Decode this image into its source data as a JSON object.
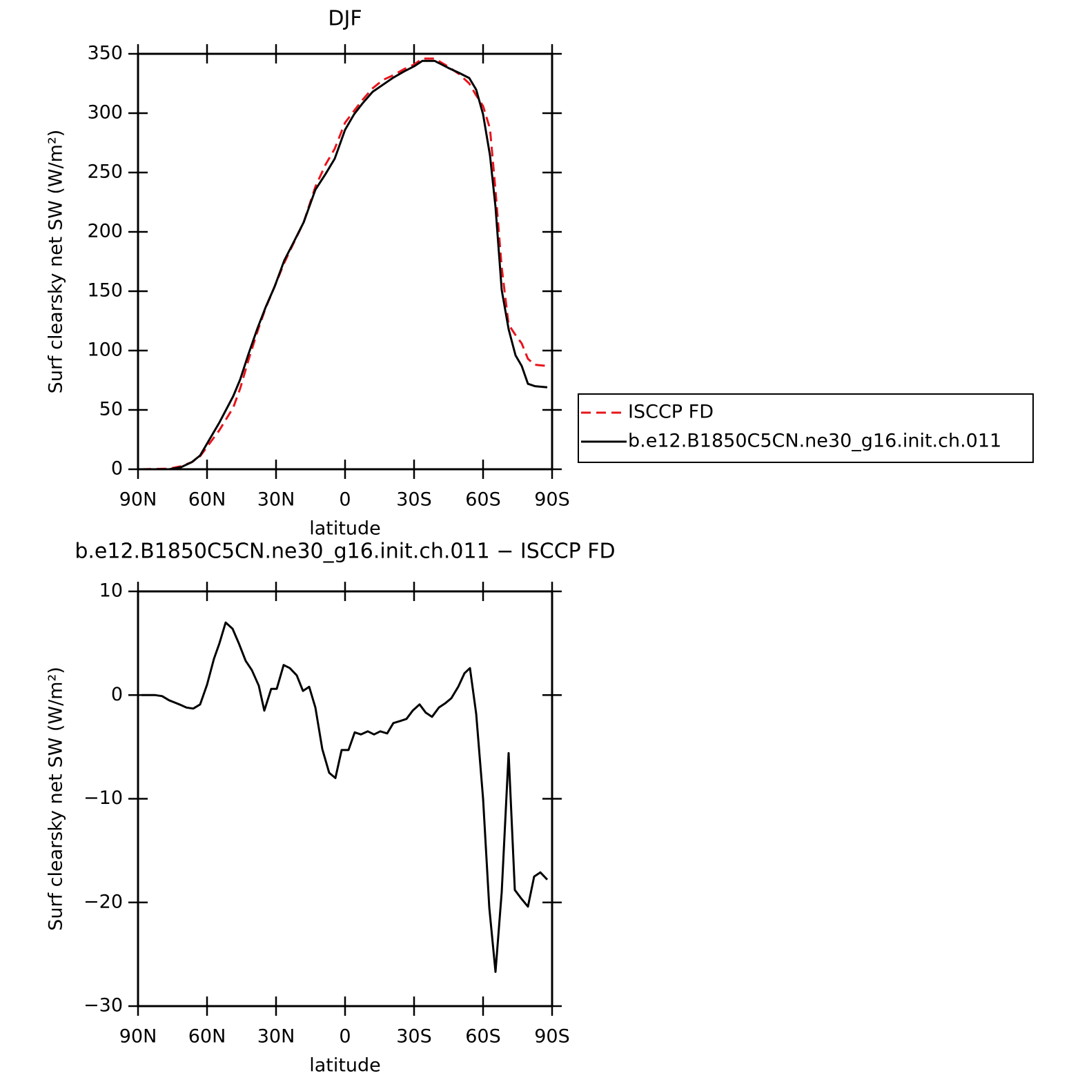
{
  "chart_data": [
    {
      "type": "line",
      "title": "DJF",
      "xlabel": "latitude",
      "ylabel": "Surf clearsky net SW (W/m²)",
      "x": [
        88.5,
        76.5,
        71.4,
        66.6,
        63,
        54.6,
        48.6,
        45.6,
        42,
        38.1,
        34.5,
        30.6,
        26.4,
        22.5,
        18,
        12.9,
        8.4,
        4.5,
        0,
        -3.9,
        -7.5,
        -12,
        -16.5,
        -21,
        -25.5,
        -30,
        -33.6,
        -39,
        -45,
        -49.5,
        -54,
        -57,
        -60,
        -63,
        -65.4,
        -68.1,
        -71.1,
        -74.1,
        -76.8,
        -79.5,
        -82.5,
        -87.9
      ],
      "series": [
        {
          "name": "ISCCP FD",
          "color": "#e8141c",
          "dashed": true,
          "values": [
            0,
            0.5,
            2.5,
            6,
            11,
            33,
            52,
            68,
            92,
            116,
            136,
            154,
            174,
            190,
            208,
            238,
            257,
            270,
            292,
            302,
            311,
            321,
            328,
            332,
            337,
            341,
            346,
            346,
            339,
            333,
            325,
            315,
            306,
            287,
            235,
            170,
            122,
            113,
            106,
            93,
            88,
            87
          ]
        },
        {
          "name": "b.e12.B1850C5CN.ne30_g16.init.ch.011",
          "color": "#000000",
          "dashed": false,
          "values": [
            0,
            0,
            1.7,
            6,
            11.6,
            39.5,
            61.6,
            75.6,
            97,
            118.6,
            136.6,
            154,
            176,
            190.7,
            208,
            235.5,
            249,
            261.6,
            286,
            299,
            308,
            318,
            324,
            330,
            335,
            339.5,
            344,
            344,
            338,
            334,
            329.6,
            319.8,
            299,
            264.5,
            221,
            151,
            118,
            96,
            87,
            72,
            70,
            69
          ]
        }
      ],
      "xlim": [
        90,
        -90
      ],
      "xticks": [
        {
          "value": 90,
          "label": "90N"
        },
        {
          "value": 60,
          "label": "60N"
        },
        {
          "value": 30,
          "label": "30N"
        },
        0,
        {
          "value": -30,
          "label": "30S"
        },
        {
          "value": -60,
          "label": "60S"
        },
        {
          "value": -90,
          "label": "90S"
        }
      ],
      "ylim": [
        0,
        350
      ],
      "yticks": [
        0,
        50,
        100,
        150,
        200,
        250,
        300,
        350
      ],
      "legend": "right"
    },
    {
      "type": "line",
      "title": "b.e12.B1850C5CN.ne30_g16.init.ch.011 − ISCCP FD",
      "xlabel": "latitude",
      "ylabel": "Surf clearsky net SW (W/m²)",
      "x": [
        88.5,
        82.5,
        79.5,
        76.5,
        72,
        69,
        66,
        63,
        60,
        57,
        54.6,
        51.9,
        48.9,
        46.2,
        43.2,
        40.5,
        37.5,
        35.1,
        32.1,
        29.7,
        26.7,
        24,
        21,
        18.3,
        15.6,
        12.9,
        9.9,
        6.9,
        4.2,
        1.5,
        -1.5,
        -4.2,
        -6.9,
        -9.9,
        -12.6,
        -15.3,
        -18.3,
        -21,
        -24,
        -26.7,
        -29.4,
        -32.4,
        -35.1,
        -37.8,
        -40.8,
        -43.5,
        -46.2,
        -49.2,
        -51.9,
        -54.3,
        -57,
        -60,
        -62.7,
        -65.4,
        -68.1,
        -71.1,
        -73.8,
        -76.5,
        -79.5,
        -82.2,
        -84.9,
        -87.9
      ],
      "series": [
        {
          "color": "#000000",
          "dashed": false,
          "values": [
            0,
            0,
            -0.1,
            -0.5,
            -0.9,
            -1.2,
            -1.3,
            -0.9,
            1,
            3.5,
            5,
            7,
            6.4,
            5,
            3.3,
            2.4,
            0.9,
            -1.5,
            0.6,
            0.6,
            2.9,
            2.6,
            1.9,
            0.4,
            0.8,
            -1.2,
            -5.2,
            -7.5,
            -8,
            -5.3,
            -5.3,
            -3.6,
            -3.8,
            -3.5,
            -3.8,
            -3.5,
            -3.7,
            -2.7,
            -2.5,
            -2.3,
            -1.5,
            -0.9,
            -1.7,
            -2.1,
            -1.2,
            -0.8,
            -0.3,
            0.8,
            2.1,
            2.6,
            -1.8,
            -10,
            -20.5,
            -26.7,
            -19,
            -5.6,
            -18.8,
            -19.6,
            -20.4,
            -17.5,
            -17.1,
            -17.8
          ]
        }
      ],
      "xlim": [
        90,
        -90
      ],
      "xticks": [
        {
          "value": 90,
          "label": "90N"
        },
        {
          "value": 60,
          "label": "60N"
        },
        {
          "value": 30,
          "label": "30N"
        },
        0,
        {
          "value": -30,
          "label": "30S"
        },
        {
          "value": -60,
          "label": "60S"
        },
        {
          "value": -90,
          "label": "90S"
        }
      ],
      "ylim": [
        -30,
        10
      ],
      "yticks": [
        {
          "value": -30,
          "label": "−30"
        },
        {
          "value": -20,
          "label": "−20"
        },
        {
          "value": -10,
          "label": "−10"
        },
        0,
        10
      ]
    }
  ]
}
